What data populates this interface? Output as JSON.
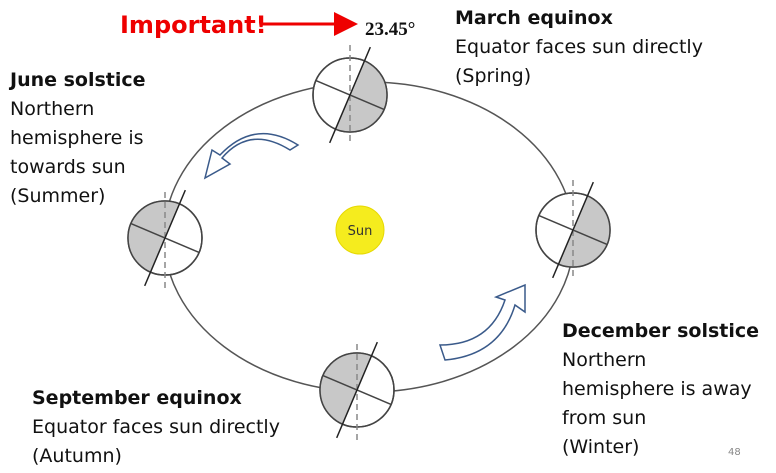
{
  "important": "Important!",
  "angle": "23.45°",
  "sun": "Sun",
  "labels": [
    {
      "title": "March equinox",
      "lines": [
        "Equator faces sun directly",
        "(Spring)"
      ]
    },
    {
      "title": "June solstice",
      "lines": [
        "Northern",
        "hemisphere is",
        "towards sun",
        "(Summer)"
      ]
    },
    {
      "title": "December solstice",
      "lines": [
        "Northern",
        "hemisphere is away",
        "from sun",
        "(Winter)"
      ]
    },
    {
      "title": "September equinox",
      "lines": [
        "Equator faces sun directly",
        "(Autumn)"
      ]
    }
  ],
  "page_number": "48"
}
